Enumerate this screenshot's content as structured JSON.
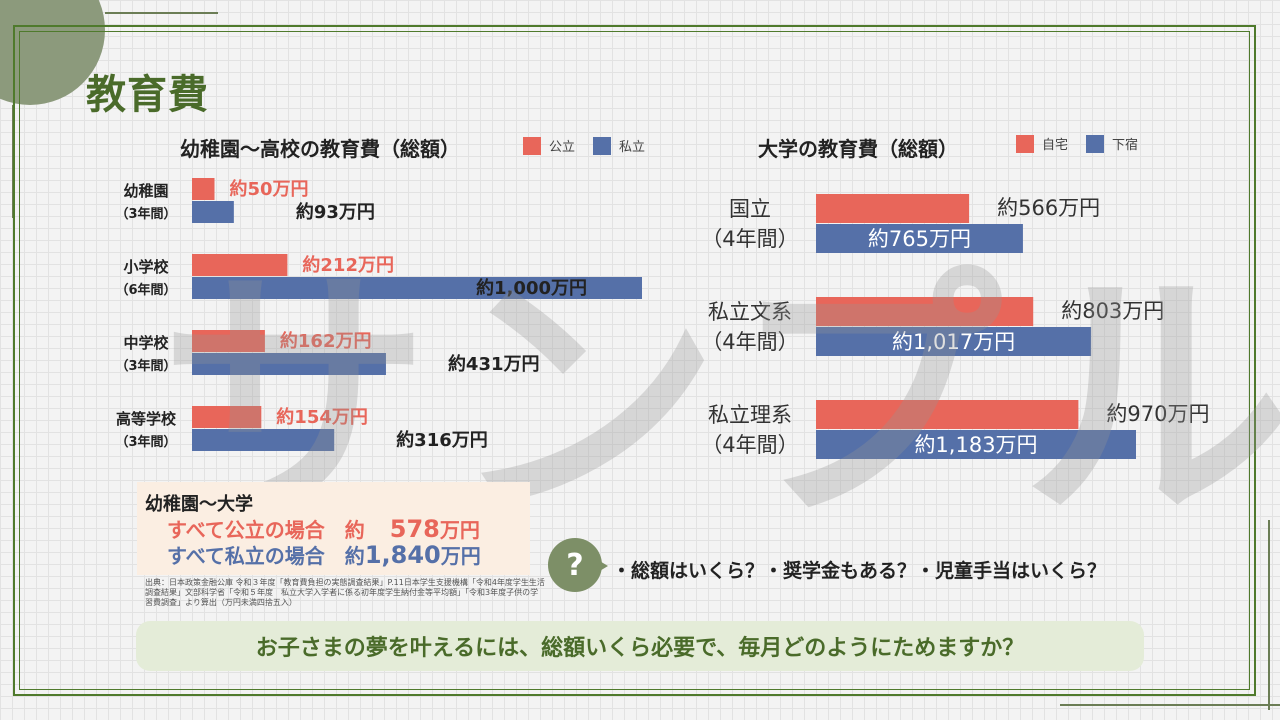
{
  "page_title": "教育費",
  "watermark": "サンプル",
  "colors": {
    "public": "#e8665a",
    "private": "#5570a8",
    "title": "#4a6b2a",
    "frame": "#4f7a2c",
    "banner_bg": "#e4ecd8",
    "summary_bg": "#fbeee2"
  },
  "chart_data": [
    {
      "type": "bar",
      "orientation": "horizontal",
      "title": "幼稚園〜高校の教育費（総額）",
      "legend": [
        "公立",
        "私立"
      ],
      "categories": [
        "幼稚園",
        "小学校",
        "中学校",
        "高等学校"
      ],
      "category_sublabels": [
        "（3年間）",
        "（6年間）",
        "（3年間）",
        "（3年間）"
      ],
      "series": [
        {
          "name": "公立",
          "values": [
            50,
            212,
            162,
            154
          ],
          "labels": [
            "約50万円",
            "約212万円",
            "約162万円",
            "約154万円"
          ]
        },
        {
          "name": "私立",
          "values": [
            93,
            1000,
            431,
            316
          ],
          "labels": [
            "約93万円",
            "約1,000万円",
            "約431万円",
            "約316万円"
          ]
        }
      ]
    },
    {
      "type": "bar",
      "orientation": "horizontal",
      "title": "大学の教育費（総額）",
      "legend": [
        "自宅",
        "下宿"
      ],
      "categories": [
        "国立",
        "私立文系",
        "私立理系"
      ],
      "category_sublabels": [
        "（4年間）",
        "（4年間）",
        "（4年間）"
      ],
      "series": [
        {
          "name": "自宅",
          "values": [
            566,
            803,
            970
          ],
          "labels": [
            "約566万円",
            "約803万円",
            "約970万円"
          ]
        },
        {
          "name": "下宿",
          "values": [
            765,
            1017,
            1183
          ],
          "labels": [
            "約765万円",
            "約1,017万円",
            "約1,183万円"
          ]
        }
      ]
    }
  ],
  "summary": {
    "title": "幼稚園〜大学",
    "public_label": "すべて公立の場合　約",
    "public_amount": "578",
    "private_label": "すべて私立の場合　約",
    "private_amount": "1,840",
    "unit": "万円"
  },
  "source": "出典：日本政策金融公庫 令和３年度「教育費負担の実態調査結果」P.11日本学生支援機構「令和4年度学生生活調査結果」文部科学省「令和５年度　私立大学入学者に係る初年度学生納付金等平均額」「令和3年度子供の学習費調査」より算出（万円未満四捨五入）",
  "question": {
    "icon": "?",
    "text": "・総額はいくら？・奨学金もある？・児童手当はいくら？"
  },
  "banner": "お子さまの夢を叶えるには、総額いくら必要で、毎月どのようにためますか？"
}
